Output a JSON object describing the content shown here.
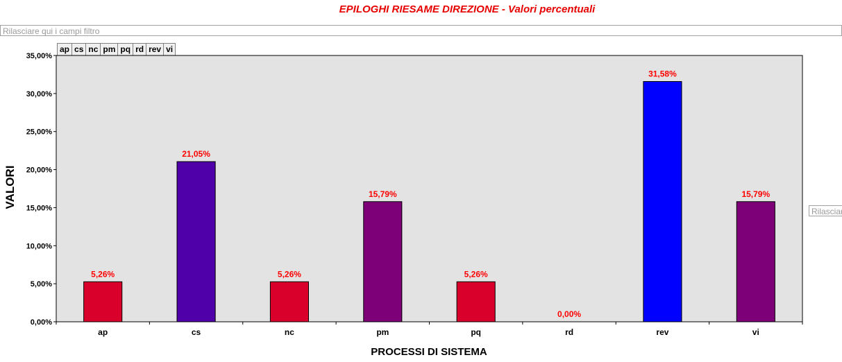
{
  "chart_title": "EPILOGHI RIESAME DIREZIONE - Valori percentuali",
  "filter_area": {
    "placeholder": "Rilasciare qui i campi filtro"
  },
  "side_drop": {
    "label": "Rilasciare"
  },
  "legend_tabs": [
    "ap",
    "cs",
    "nc",
    "pm",
    "pq",
    "rd",
    "rev",
    "vi"
  ],
  "colors": {
    "plot_background": "#e3e3e3",
    "data_label": "#ff0000",
    "title": "#e60000"
  },
  "chart_data": {
    "type": "bar",
    "title": "EPILOGHI RIESAME DIREZIONE - Valori percentuali",
    "xlabel": "PROCESSI DI SISTEMA",
    "ylabel": "VALORI",
    "ylim": [
      0,
      35
    ],
    "yticks": [
      "0,00%",
      "5,00%",
      "10,00%",
      "15,00%",
      "20,00%",
      "25,00%",
      "30,00%",
      "35,00%"
    ],
    "ytick_values": [
      0,
      5,
      10,
      15,
      20,
      25,
      30,
      35
    ],
    "categories": [
      "ap",
      "cs",
      "nc",
      "pm",
      "pq",
      "rd",
      "rev",
      "vi"
    ],
    "values": [
      5.26,
      21.05,
      5.26,
      15.79,
      5.26,
      0.0,
      31.58,
      15.79
    ],
    "data_labels": [
      "5,26%",
      "21,05%",
      "5,26%",
      "15,79%",
      "5,26%",
      "0,00%",
      "31,58%",
      "15,79%"
    ],
    "bar_colors": [
      "#d9002b",
      "#5000a8",
      "#d9002b",
      "#7d0078",
      "#d9002b",
      "#d9002b",
      "#0000ff",
      "#7d0078"
    ],
    "grid": false,
    "legend": "top-left"
  }
}
